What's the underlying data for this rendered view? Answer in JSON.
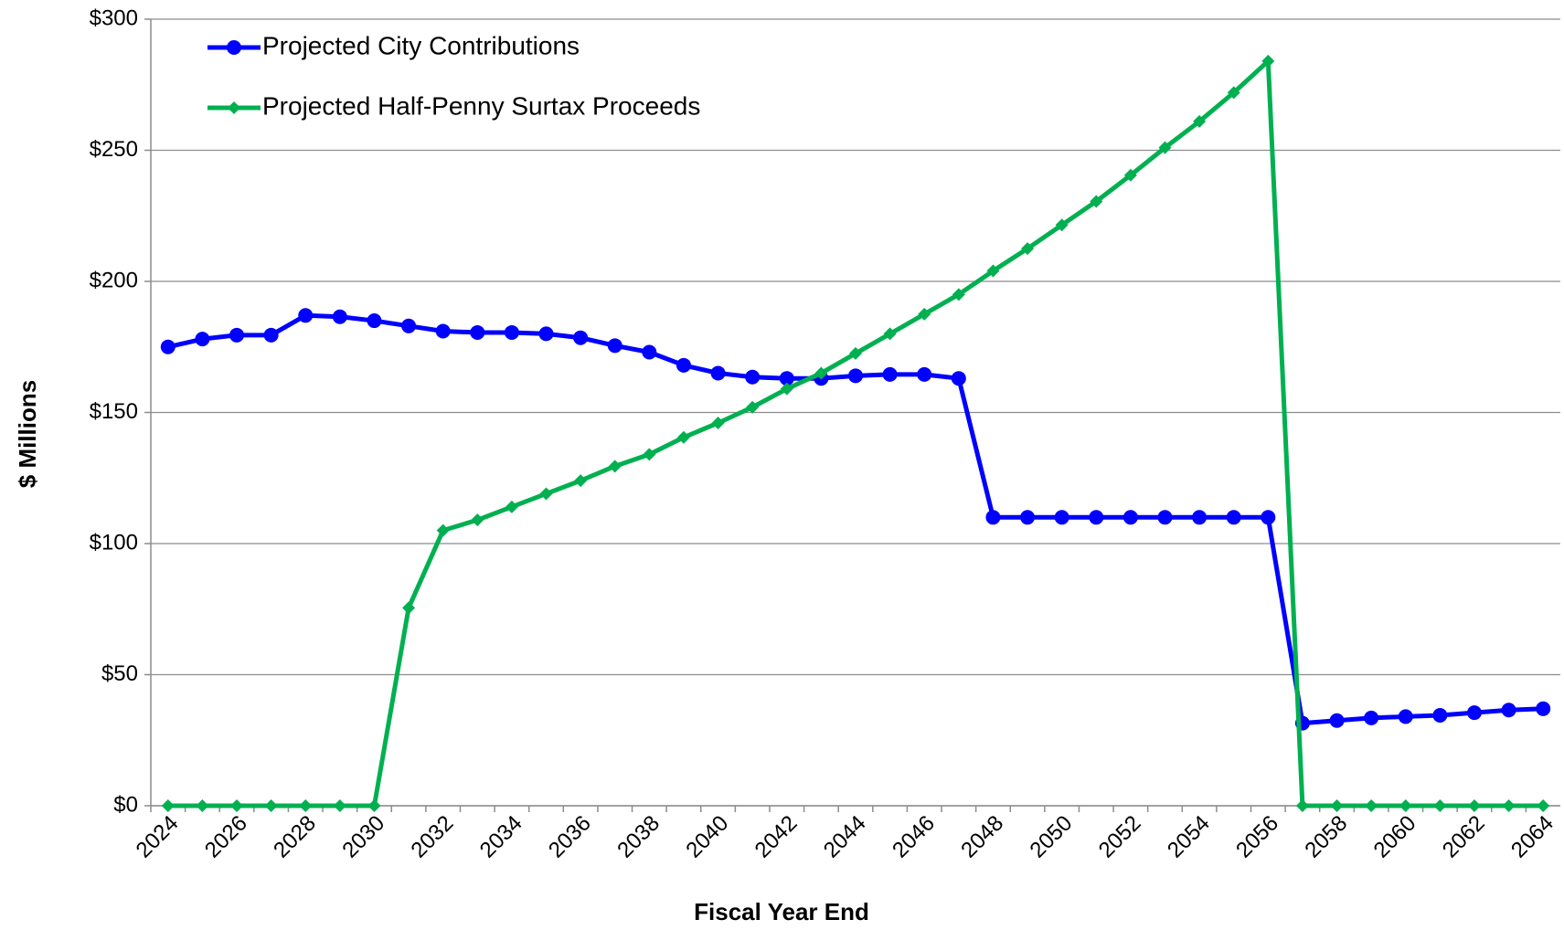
{
  "chart_data": {
    "type": "line",
    "y_label": "$ Millions",
    "x_label": "Fiscal Year End",
    "categories": [
      "2024",
      null,
      "2026",
      null,
      "2028",
      null,
      "2030",
      null,
      "2032",
      null,
      "2034",
      null,
      "2036",
      null,
      "2038",
      null,
      "2040",
      null,
      "2042",
      null,
      "2044",
      null,
      "2046",
      null,
      "2048",
      null,
      "2050",
      null,
      "2052",
      null,
      "2054",
      null,
      "2056",
      null,
      "2058",
      null,
      "2060",
      null,
      "2062",
      null,
      "2064"
    ],
    "series": [
      {
        "name": "Projected City Contributions",
        "color": "#0000ff",
        "marker": "circle",
        "values": [
          175,
          178,
          179.5,
          179.5,
          187,
          186.5,
          185,
          183,
          181,
          180.5,
          180.5,
          180,
          178.5,
          175.5,
          173,
          168,
          165,
          163.5,
          163,
          163,
          164,
          164.5,
          164.5,
          163,
          110,
          110,
          110,
          110,
          110,
          110,
          110,
          110,
          110,
          31.5,
          32.5,
          33.5,
          34,
          34.5,
          35.5,
          36.5,
          37
        ]
      },
      {
        "name": "Projected Half-Penny Surtax Proceeds",
        "color": "#00b050",
        "marker": "diamond",
        "values": [
          0,
          0,
          0,
          0,
          0,
          0,
          0,
          75.5,
          105,
          109,
          114,
          119,
          124,
          129.5,
          134,
          140.5,
          146,
          152,
          159,
          165,
          172.5,
          180,
          187.5,
          195,
          204,
          212.5,
          221.5,
          230.5,
          240.5,
          251,
          261,
          272,
          284,
          0,
          0,
          0,
          0,
          0,
          0,
          0,
          0
        ]
      }
    ],
    "ylim": [
      0,
      300
    ],
    "yticks": [
      {
        "value": 0,
        "label": "$0"
      },
      {
        "value": 50,
        "label": "$50"
      },
      {
        "value": 100,
        "label": "$100"
      },
      {
        "value": 150,
        "label": "$150"
      },
      {
        "value": 200,
        "label": "$200"
      },
      {
        "value": 250,
        "label": "$250"
      },
      {
        "value": 300,
        "label": "$300"
      }
    ],
    "grid": true,
    "legend": "top-left"
  }
}
